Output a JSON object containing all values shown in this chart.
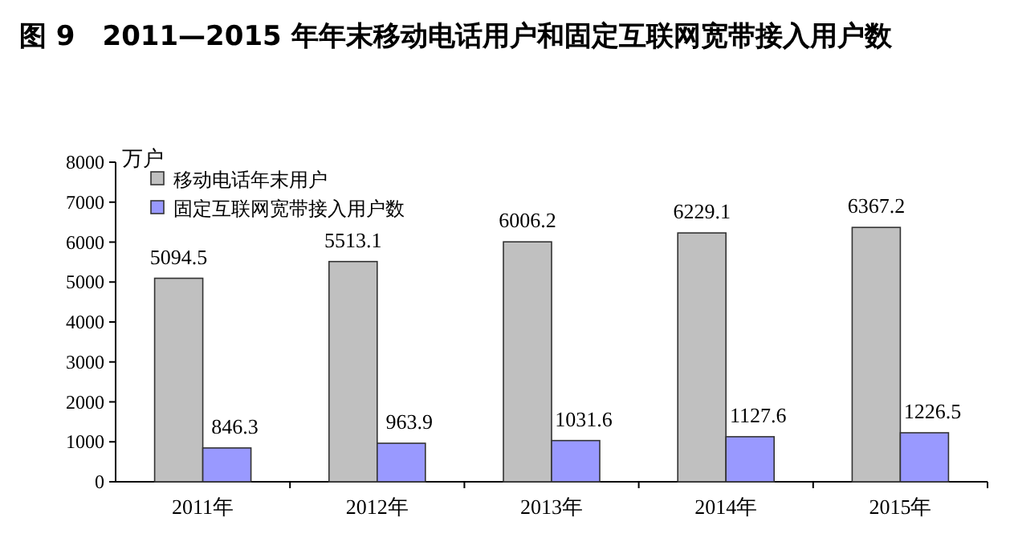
{
  "chart_data": {
    "type": "bar",
    "title": "图 9　2011—2015 年年末移动电话用户和固定互联网宽带接入用户数",
    "ylabel": "万户",
    "categories": [
      "2011年",
      "2012年",
      "2013年",
      "2014年",
      "2015年"
    ],
    "series": [
      {
        "name": "移动电话年末用户",
        "color": "#c0c0c0",
        "values": [
          5094.5,
          5513.1,
          6006.2,
          6229.1,
          6367.2
        ]
      },
      {
        "name": "固定互联网宽带接入用户数",
        "color": "#9999ff",
        "values": [
          846.3,
          963.9,
          1031.6,
          1127.6,
          1226.5
        ]
      }
    ],
    "ylim": [
      0,
      8000
    ],
    "yticks": [
      0,
      1000,
      2000,
      3000,
      4000,
      5000,
      6000,
      7000,
      8000
    ],
    "data_labels": true,
    "legend": "top left",
    "grid": false
  }
}
